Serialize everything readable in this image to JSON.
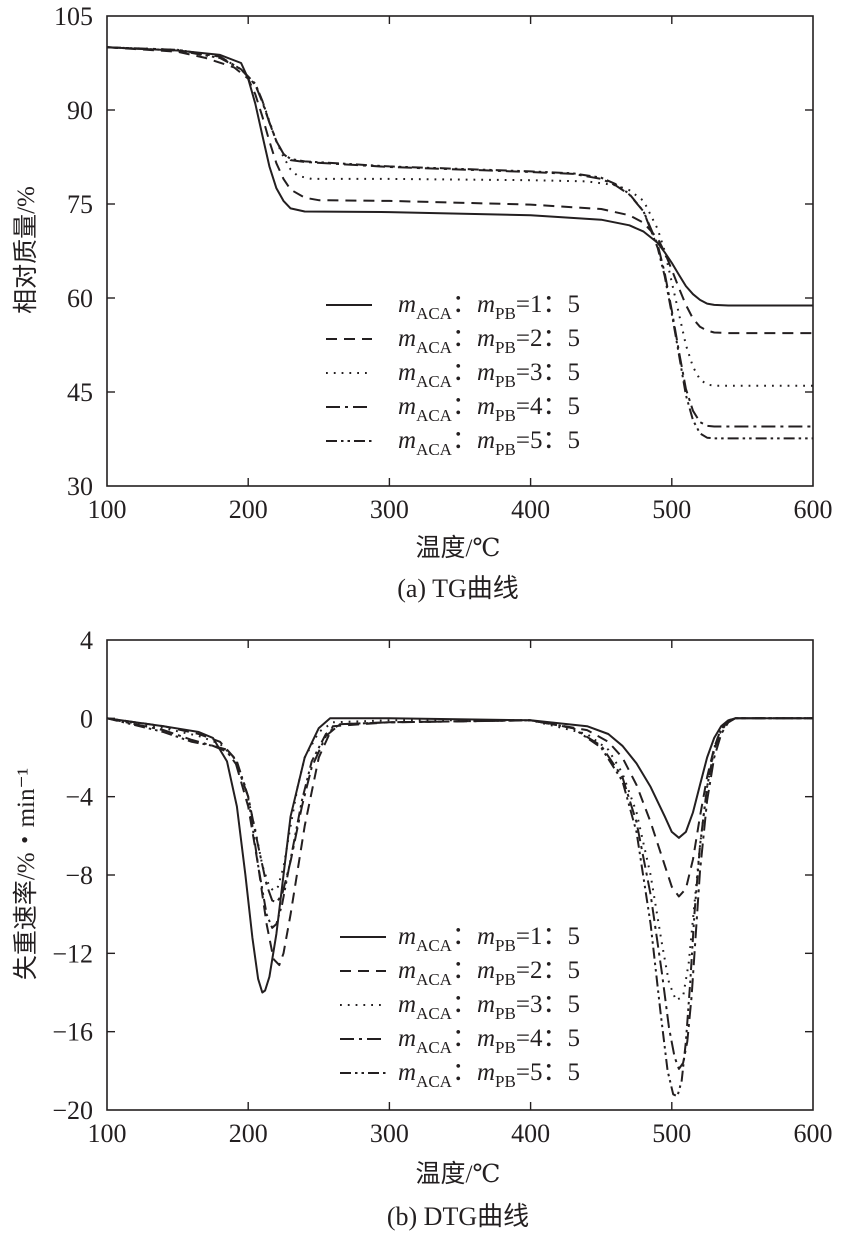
{
  "chart_data": [
    {
      "type": "line",
      "panel": "a",
      "caption": "(a) TG曲线",
      "xlabel": "温度/℃",
      "ylabel": "相对质量/%",
      "xlim": [
        100,
        600
      ],
      "ylim": [
        30,
        105
      ],
      "xticks": [
        "100",
        "200",
        "300",
        "400",
        "500",
        "600"
      ],
      "yticks": [
        "30",
        "45",
        "60",
        "75",
        "90",
        "105"
      ],
      "legend_position": "lower-right",
      "series": [
        {
          "name": "mACA：mPB=1：5",
          "style": "solid",
          "x": [
            100,
            150,
            180,
            195,
            200,
            205,
            210,
            215,
            220,
            225,
            230,
            240,
            300,
            400,
            450,
            470,
            480,
            490,
            495,
            500,
            505,
            510,
            515,
            520,
            525,
            530,
            540,
            600
          ],
          "y": [
            100,
            99.5,
            98.8,
            97.5,
            95,
            91,
            86,
            81,
            77.5,
            75.5,
            74.3,
            73.8,
            73.7,
            73.2,
            72.5,
            71.6,
            70.6,
            68.8,
            67.3,
            65.6,
            63.7,
            61.9,
            60.6,
            59.7,
            59.1,
            58.9,
            58.8,
            58.8
          ]
        },
        {
          "name": "mACA：mPB=2：5",
          "style": "dashed",
          "x": [
            100,
            150,
            170,
            190,
            200,
            205,
            210,
            215,
            220,
            225,
            230,
            240,
            250,
            300,
            400,
            450,
            470,
            480,
            490,
            495,
            500,
            505,
            510,
            515,
            520,
            525,
            530,
            540,
            600
          ],
          "y": [
            100,
            99.3,
            98.3,
            96.8,
            95,
            92.5,
            89,
            85,
            81.5,
            79,
            77.3,
            76,
            75.6,
            75.5,
            74.9,
            74.2,
            73.2,
            72,
            69.5,
            67.3,
            64.5,
            61.6,
            58.9,
            56.7,
            55.4,
            54.8,
            54.5,
            54.4,
            54.4
          ]
        },
        {
          "name": "mACA：mPB=3：5",
          "style": "dotted",
          "x": [
            100,
            150,
            180,
            195,
            205,
            210,
            215,
            220,
            225,
            230,
            235,
            245,
            300,
            400,
            440,
            460,
            470,
            480,
            490,
            495,
            500,
            505,
            510,
            515,
            520,
            525,
            530,
            600
          ],
          "y": [
            100,
            99.6,
            98.5,
            96.5,
            94,
            91.5,
            88.2,
            85,
            82.5,
            80.5,
            79.5,
            79,
            79,
            78.8,
            78.6,
            78,
            77.2,
            75.5,
            71,
            67.5,
            62.5,
            57.5,
            52.5,
            49,
            47,
            46.2,
            46,
            46
          ]
        },
        {
          "name": "mACA：mPB=4：5",
          "style": "dashdot",
          "x": [
            100,
            150,
            180,
            195,
            205,
            210,
            215,
            220,
            225,
            230,
            240,
            300,
            400,
            430,
            450,
            460,
            470,
            480,
            490,
            495,
            500,
            505,
            510,
            515,
            520,
            525,
            530,
            600
          ],
          "y": [
            100,
            99.6,
            98.5,
            96.5,
            94,
            91.3,
            88,
            85,
            83,
            82,
            81.7,
            80.9,
            80.1,
            79.8,
            79,
            78,
            76.5,
            73.8,
            68.5,
            64,
            58,
            51.5,
            45.5,
            42,
            40.2,
            39.6,
            39.5,
            39.5
          ]
        },
        {
          "name": "mACA：mPB=5：5",
          "style": "dashdotdot",
          "x": [
            100,
            150,
            180,
            195,
            205,
            210,
            215,
            220,
            225,
            230,
            240,
            300,
            400,
            430,
            450,
            460,
            470,
            480,
            490,
            495,
            500,
            505,
            510,
            515,
            520,
            525,
            530,
            600
          ],
          "y": [
            100,
            99.5,
            98.3,
            96.5,
            94.2,
            91.5,
            88,
            85,
            83,
            82.2,
            81.8,
            81,
            80.2,
            79.9,
            79.2,
            78.2,
            76.6,
            73.8,
            68,
            63.5,
            57.5,
            51,
            44.5,
            40.5,
            38.4,
            37.7,
            37.6,
            37.6
          ]
        }
      ]
    },
    {
      "type": "line",
      "panel": "b",
      "caption": "(b) DTG曲线",
      "xlabel": "温度/℃",
      "ylabel": "失重速率/%・min⁻¹",
      "xlim": [
        100,
        600
      ],
      "ylim": [
        -20,
        4
      ],
      "xticks": [
        "100",
        "200",
        "300",
        "400",
        "500",
        "600"
      ],
      "yticks": [
        "4",
        "0",
        "−4",
        "−8",
        "−12",
        "−16",
        "−20"
      ],
      "legend_position": "lower-center",
      "series": [
        {
          "name": "mACA：mPB=1：5",
          "style": "solid",
          "x": [
            100,
            140,
            165,
            175,
            185,
            192,
            198,
            203,
            207,
            210,
            212,
            215,
            220,
            225,
            230,
            240,
            250,
            258,
            300,
            400,
            440,
            455,
            465,
            475,
            485,
            495,
            500,
            505,
            510,
            515,
            520,
            525,
            530,
            535,
            540,
            545,
            550,
            600
          ],
          "y": [
            0,
            -0.4,
            -0.7,
            -1,
            -2.2,
            -4.5,
            -8,
            -11.2,
            -13.3,
            -14,
            -13.9,
            -13.2,
            -11,
            -8,
            -5,
            -2,
            -0.5,
            0,
            0,
            -0.1,
            -0.4,
            -0.8,
            -1.4,
            -2.3,
            -3.5,
            -5,
            -5.8,
            -6.1,
            -5.8,
            -4.8,
            -3.4,
            -2,
            -1,
            -0.4,
            -0.1,
            0,
            0,
            0
          ]
        },
        {
          "name": "mACA：mPB=2：5",
          "style": "dashed",
          "x": [
            100,
            140,
            165,
            180,
            190,
            200,
            207,
            213,
            218,
            222,
            225,
            230,
            240,
            250,
            260,
            300,
            400,
            440,
            455,
            465,
            475,
            485,
            495,
            500,
            505,
            510,
            515,
            520,
            525,
            530,
            535,
            540,
            545,
            550,
            600
          ],
          "y": [
            0,
            -0.4,
            -0.8,
            -1.2,
            -2,
            -4.5,
            -7.5,
            -10.5,
            -12.3,
            -12.6,
            -12,
            -10,
            -5.5,
            -2,
            -0.4,
            -0.2,
            -0.1,
            -0.6,
            -1.2,
            -2,
            -3.4,
            -5.3,
            -7.5,
            -8.6,
            -9.1,
            -8.7,
            -7.2,
            -5,
            -3,
            -1.5,
            -0.5,
            -0.2,
            0,
            0,
            0
          ]
        },
        {
          "name": "mACA：mPB=3：5",
          "style": "dotted",
          "x": [
            100,
            140,
            165,
            180,
            190,
            198,
            205,
            210,
            215,
            218,
            221,
            225,
            230,
            235,
            240,
            250,
            260,
            300,
            400,
            440,
            455,
            465,
            475,
            485,
            493,
            498,
            503,
            508,
            512,
            516,
            520,
            525,
            530,
            535,
            540,
            545,
            550,
            600
          ],
          "y": [
            0,
            -0.5,
            -0.9,
            -1.3,
            -2,
            -3.5,
            -5.7,
            -7.5,
            -8.6,
            -8.8,
            -8.6,
            -7.6,
            -5.5,
            -3.5,
            -2,
            -0.7,
            -0.2,
            -0.1,
            -0.1,
            -0.8,
            -1.6,
            -2.8,
            -4.8,
            -8,
            -11.5,
            -13.5,
            -14.4,
            -14.2,
            -12.5,
            -9.5,
            -6.5,
            -3.5,
            -1.5,
            -0.5,
            -0.1,
            0,
            0,
            0
          ]
        },
        {
          "name": "mACA：mPB=4：5",
          "style": "dashdot",
          "x": [
            100,
            140,
            160,
            175,
            185,
            192,
            200,
            207,
            213,
            217,
            220,
            224,
            230,
            238,
            245,
            255,
            265,
            300,
            400,
            430,
            450,
            465,
            475,
            485,
            493,
            498,
            502,
            505,
            508,
            511,
            514,
            517,
            520,
            525,
            530,
            535,
            540,
            545,
            550,
            600
          ],
          "y": [
            0,
            -0.6,
            -1.1,
            -1.4,
            -1.7,
            -2.4,
            -4,
            -6.5,
            -8.5,
            -9.3,
            -9.4,
            -9,
            -7.3,
            -4.5,
            -2.5,
            -0.9,
            -0.3,
            -0.2,
            -0.1,
            -0.5,
            -1.4,
            -3,
            -5.3,
            -9,
            -13,
            -15.8,
            -17.3,
            -17.9,
            -17.6,
            -16.5,
            -14.2,
            -11,
            -7.8,
            -4.2,
            -2,
            -0.8,
            -0.2,
            0,
            0,
            0
          ]
        },
        {
          "name": "mACA：mPB=5：5",
          "style": "dashdotdot",
          "x": [
            100,
            140,
            160,
            175,
            185,
            192,
            200,
            207,
            213,
            217,
            220,
            224,
            230,
            238,
            245,
            255,
            265,
            300,
            400,
            430,
            450,
            465,
            475,
            485,
            492,
            497,
            501,
            504,
            507,
            510,
            513,
            516,
            520,
            525,
            530,
            535,
            540,
            545,
            550,
            600
          ],
          "y": [
            0,
            -0.7,
            -1.2,
            -1.4,
            -1.6,
            -2.2,
            -4,
            -7.5,
            -10,
            -10.7,
            -10.5,
            -9.5,
            -7.2,
            -4.2,
            -2.2,
            -0.8,
            -0.3,
            -0.2,
            -0.1,
            -0.5,
            -1.5,
            -3.2,
            -5.8,
            -10.5,
            -15,
            -18,
            -19.2,
            -19.3,
            -18.5,
            -16.5,
            -13.5,
            -10,
            -6.5,
            -3.5,
            -1.6,
            -0.6,
            -0.2,
            0,
            0,
            0
          ]
        }
      ]
    }
  ]
}
